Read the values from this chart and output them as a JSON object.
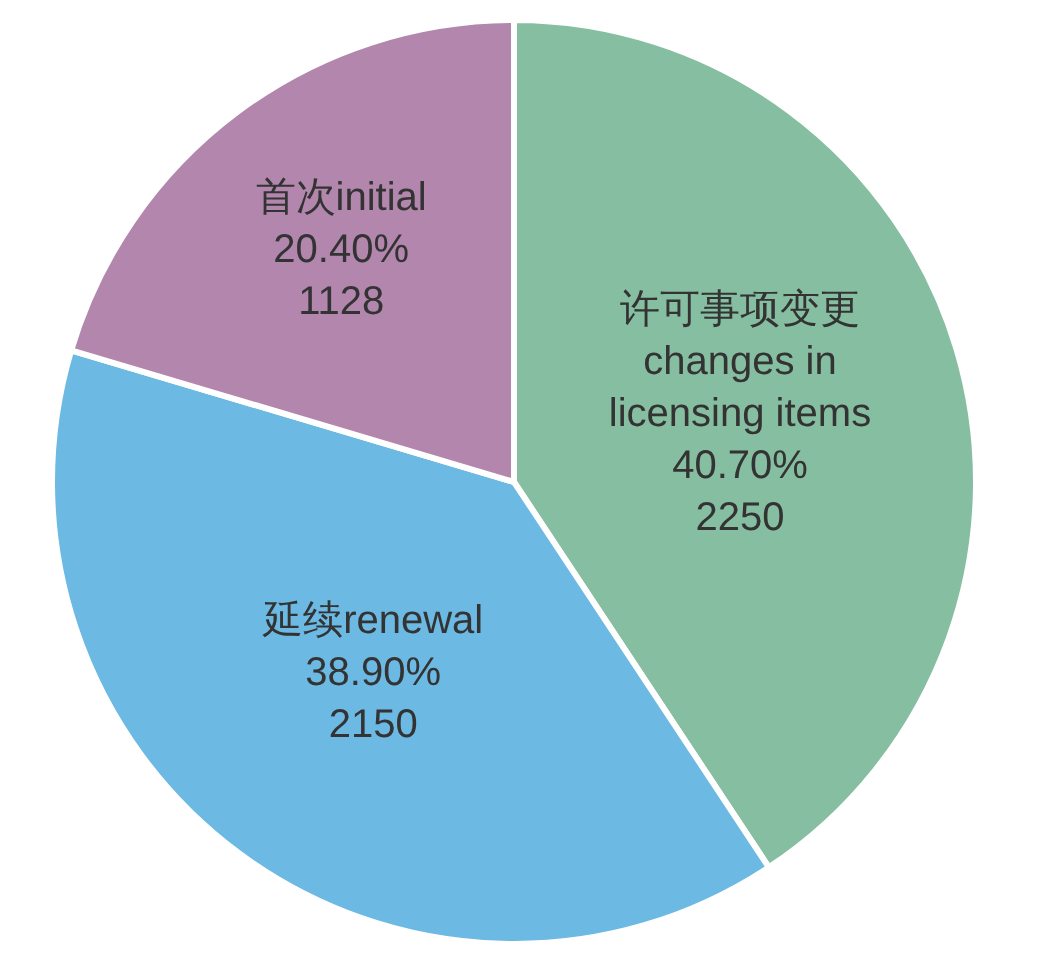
{
  "chart_data": {
    "type": "pie",
    "categories": [
      "许可事项变更\nchanges in\nlicensing items",
      "延续renewal",
      "首次initial"
    ],
    "values": [
      40.7,
      38.9,
      20.4
    ],
    "value_labels": [
      "40.70%\n2250",
      "38.90%\n2150",
      "20.40%\n1128"
    ],
    "colors": [
      "#86bea1",
      "#6cb9e3",
      "#b286ad"
    ],
    "legend": false
  }
}
